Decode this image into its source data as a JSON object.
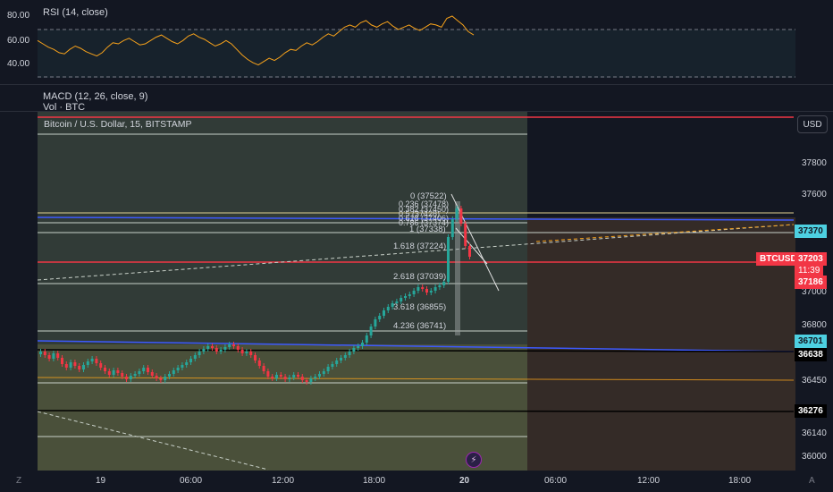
{
  "rsi": {
    "label": "RSI (14, close)",
    "ticks": [
      "80.00",
      "60.00",
      "40.00"
    ],
    "values": [
      58,
      55,
      52,
      50,
      47,
      46,
      50,
      53,
      51,
      48,
      46,
      44,
      47,
      52,
      56,
      55,
      58,
      60,
      57,
      54,
      55,
      58,
      61,
      63,
      60,
      57,
      55,
      58,
      62,
      64,
      61,
      59,
      56,
      53,
      55,
      58,
      55,
      50,
      45,
      41,
      38,
      36,
      39,
      42,
      40,
      43,
      47,
      50,
      49,
      53,
      56,
      54,
      57,
      61,
      64,
      62,
      66,
      70,
      72,
      70,
      74,
      76,
      72,
      70,
      73,
      75,
      71,
      68,
      70,
      72,
      69,
      67,
      70,
      73,
      72,
      70,
      78,
      80,
      76,
      72,
      66,
      63
    ]
  },
  "macd": {
    "label": "MACD (12, 26, close, 9)"
  },
  "volume": {
    "label": "Vol · BTC"
  },
  "symbol": {
    "title": "Bitcoin / U.S. Dollar, 15, BITSTAMP"
  },
  "currency": "USD",
  "price_axis": {
    "ticks": [
      "37800",
      "37600",
      "37000",
      "36800",
      "36450",
      "36140",
      "36000"
    ],
    "badges": [
      {
        "text": "37370",
        "bg": "#4dd0e1",
        "fg": "#131722"
      },
      {
        "text": "BTCUSD",
        "bg": "#f23645",
        "fg": "#ffffff"
      },
      {
        "text": "37203",
        "bg": "#f23645",
        "fg": "#ffffff"
      },
      {
        "text": "11:39",
        "bg": "#f23645",
        "fg": "#ffffff"
      },
      {
        "text": "37186",
        "bg": "#f23645",
        "fg": "#ffffff"
      },
      {
        "text": "36701",
        "bg": "#4dd0e1",
        "fg": "#131722"
      },
      {
        "text": "36638",
        "bg": "#000000",
        "fg": "#ffffff"
      },
      {
        "text": "36276",
        "bg": "#000000",
        "fg": "#ffffff"
      }
    ]
  },
  "fib": {
    "levels": [
      {
        "label": "0 (37522)"
      },
      {
        "label": "0.236 (37478)"
      },
      {
        "label": "0.382 (37450)"
      },
      {
        "label": "0.5 (37428)"
      },
      {
        "label": "0.618 (37406)"
      },
      {
        "label": "0.786 (37374)"
      },
      {
        "label": "1 (37338)"
      },
      {
        "label": "1.618 (37224)"
      },
      {
        "label": "2.618 (37039)"
      },
      {
        "label": "3.618 (36855)"
      },
      {
        "label": "4.236 (36741)"
      }
    ]
  },
  "time_axis": {
    "ticks": [
      "19",
      "06:00",
      "12:00",
      "18:00",
      "20",
      "06:00",
      "12:00",
      "18:00"
    ]
  },
  "icons": {
    "timezone": "Z",
    "auto": "A",
    "flash": "⚡"
  },
  "colors": {
    "up": "#26a69a",
    "down": "#f23645",
    "rsi_line": "#f7a21b",
    "fib_zone": "#5d6b4e"
  }
}
